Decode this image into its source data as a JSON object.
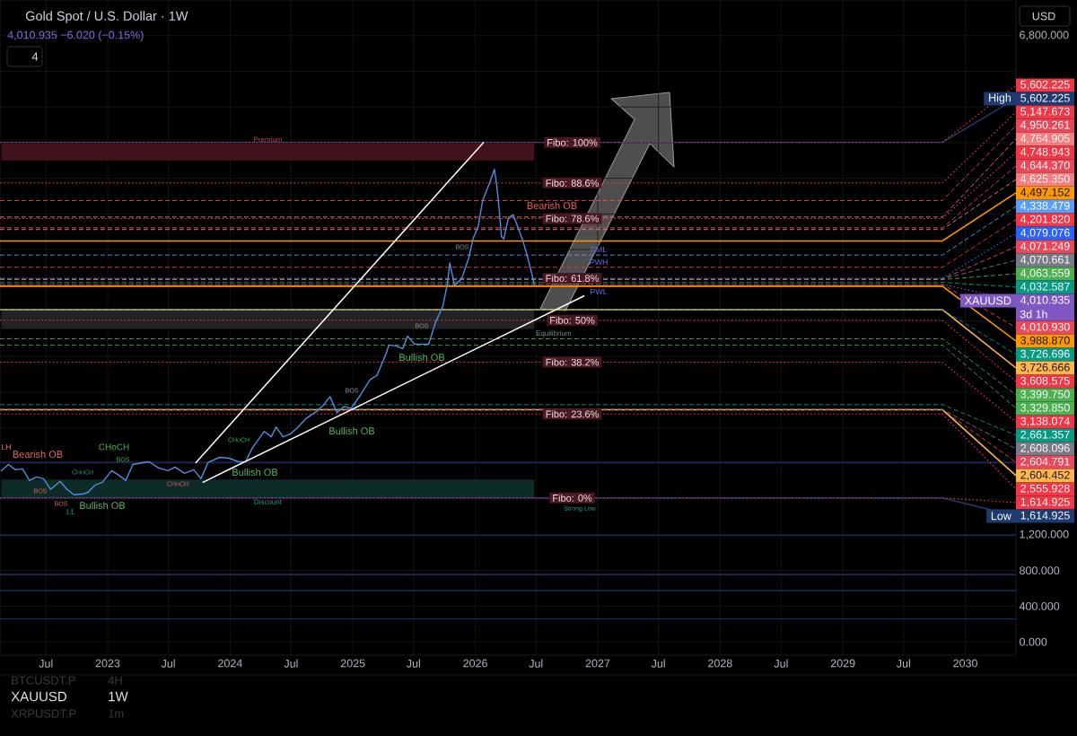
{
  "chart_data": {
    "type": "line",
    "title": "Gold Spot / U.S. Dollar · 1W",
    "subtitle": "4,010.935 −6.020 (−0.15%)",
    "xlim": [
      "2022-02-14",
      "2030-06-01"
    ],
    "xticks": [
      {
        "value": "2022-07-01",
        "label": "Jul"
      },
      {
        "value": "2023-01-01",
        "label": "2023"
      },
      {
        "value": "2023-07-01",
        "label": "Jul"
      },
      {
        "value": "2024-01-01",
        "label": "2024"
      },
      {
        "value": "2024-07-01",
        "label": "Jul"
      },
      {
        "value": "2025-01-01",
        "label": "2025"
      },
      {
        "value": "2025-07-01",
        "label": "Jul"
      },
      {
        "value": "2026-01-01",
        "label": "2026"
      },
      {
        "value": "2026-07-01",
        "label": "Jul"
      },
      {
        "value": "2027-01-01",
        "label": "2027"
      },
      {
        "value": "2027-07-01",
        "label": "Jul"
      },
      {
        "value": "2028-01-01",
        "label": "2028"
      },
      {
        "value": "2028-07-01",
        "label": "Jul"
      },
      {
        "value": "2029-01-01",
        "label": "2029"
      },
      {
        "value": "2029-07-01",
        "label": "Jul"
      },
      {
        "value": "2030-01-01",
        "label": "2030"
      }
    ],
    "ylim": [
      -150,
      7200
    ],
    "yticks": [
      {
        "value": 0,
        "label": "0.000"
      },
      {
        "value": 400,
        "label": "400.000"
      },
      {
        "value": 800,
        "label": "800.000"
      },
      {
        "value": 1200,
        "label": "1,200.000"
      },
      {
        "value": 1600,
        "label": null
      },
      {
        "value": 2000,
        "label": null
      },
      {
        "value": 2400,
        "label": null
      },
      {
        "value": 2800,
        "label": null
      },
      {
        "value": 3200,
        "label": null
      },
      {
        "value": 3600,
        "label": null
      },
      {
        "value": 4000,
        "label": null
      },
      {
        "value": 4400,
        "label": null
      },
      {
        "value": 4800,
        "label": null
      },
      {
        "value": 5200,
        "label": null
      },
      {
        "value": 5600,
        "label": null
      },
      {
        "value": 6000,
        "label": null
      },
      {
        "value": 6400,
        "label": null
      },
      {
        "value": 6800,
        "label": "6,800.000"
      }
    ],
    "grid": true,
    "series": [
      {
        "color": "#4f8fdc",
        "x": [
          "2022-02-18",
          "2022-03-11",
          "2022-04-01",
          "2022-04-22",
          "2022-05-13",
          "2022-06-03",
          "2022-06-24",
          "2022-07-15",
          "2022-08-12",
          "2022-09-02",
          "2022-09-23",
          "2022-10-21",
          "2022-11-04",
          "2022-11-25",
          "2022-12-16",
          "2023-01-13",
          "2023-02-03",
          "2023-02-24",
          "2023-03-17",
          "2023-04-14",
          "2023-05-05",
          "2023-06-02",
          "2023-06-30",
          "2023-07-21",
          "2023-08-18",
          "2023-09-15",
          "2023-10-06",
          "2023-10-27",
          "2023-12-01",
          "2023-12-29",
          "2024-01-26",
          "2024-02-16",
          "2024-03-08",
          "2024-04-12",
          "2024-05-03",
          "2024-05-17",
          "2024-06-07",
          "2024-06-28",
          "2024-07-19",
          "2024-08-16",
          "2024-09-13",
          "2024-10-04",
          "2024-10-25",
          "2024-11-15",
          "2024-12-06",
          "2024-12-27",
          "2025-01-24",
          "2025-02-21",
          "2025-03-14",
          "2025-04-11",
          "2025-04-18",
          "2025-05-09",
          "2025-05-30",
          "2025-06-13",
          "2025-07-04",
          "2025-07-25",
          "2025-08-15",
          "2025-09-05",
          "2025-09-26",
          "2025-10-10",
          "2025-10-17",
          "2025-10-31",
          "2025-11-21",
          "2025-12-12",
          "2025-12-26",
          "2026-01-09",
          "2026-01-23",
          "2026-02-13",
          "2026-02-27",
          "2026-03-06",
          "2026-03-13",
          "2026-03-20",
          "2026-03-27",
          "2026-04-10",
          "2026-04-24",
          "2026-05-08",
          "2026-05-22",
          "2026-06-05",
          "2026-06-19",
          "2026-06-26"
        ],
        "values": [
          1920,
          1990,
          1930,
          1940,
          1810,
          1850,
          1830,
          1710,
          1800,
          1710,
          1650,
          1660,
          1680,
          1760,
          1790,
          1920,
          1870,
          1810,
          1990,
          2010,
          2020,
          1950,
          1920,
          1960,
          1890,
          1930,
          1830,
          2010,
          2070,
          2060,
          2020,
          2020,
          2180,
          2360,
          2300,
          2410,
          2300,
          2330,
          2400,
          2510,
          2580,
          2650,
          2750,
          2570,
          2640,
          2620,
          2770,
          2940,
          2990,
          3240,
          3330,
          3320,
          3290,
          3430,
          3340,
          3340,
          3340,
          3590,
          3760,
          4020,
          4250,
          4000,
          4070,
          4300,
          4530,
          4650,
          4950,
          5150,
          5300,
          5120,
          4860,
          4550,
          4520,
          4760,
          4790,
          4650,
          4510,
          4330,
          4120,
          4010
        ]
      },
      {
        "type": "line",
        "color": "#ffffff",
        "x": [
          "2023-09-21",
          "2026-01-25"
        ],
        "values": [
          2010,
          5600
        ]
      },
      {
        "type": "line",
        "color": "#ffffff",
        "x": [
          "2023-10-12",
          "2026-11-21"
        ],
        "values": [
          1790,
          3880
        ]
      }
    ],
    "bands": [
      {
        "axis": "y",
        "from": 5400,
        "to": 5590,
        "color": "#43131b",
        "label": "Premium"
      },
      {
        "axis": "y",
        "from": 3510,
        "to": 3730,
        "color": "#232327",
        "label": "Equilibrium"
      },
      {
        "axis": "y",
        "from": 1620,
        "to": 1820,
        "color": "#0d2b27",
        "label": "Discount"
      }
    ],
    "ref_lines": [
      {
        "axis": "y",
        "value": 5602.225,
        "label": "5,602.225",
        "color": "#f23645",
        "line_style": "dotted"
      },
      {
        "axis": "y",
        "value": 5602.225,
        "label": "5,602.225",
        "color": "#1e3a6e",
        "line_style": "solid"
      },
      {
        "axis": "y",
        "value": 5147.673,
        "label": "5,147.673",
        "color": "#f23645",
        "line_style": "dotted"
      },
      {
        "axis": "y",
        "value": 4950.261,
        "label": "4,950.261",
        "color": "#e8485a",
        "line_style": "dashed"
      },
      {
        "axis": "y",
        "value": 4764.905,
        "label": "4,764.905",
        "color": "#f77c80",
        "line_style": "dashed"
      },
      {
        "axis": "y",
        "value": 4748.943,
        "label": "4,748.943",
        "color": "#f23645",
        "line_style": "dotted"
      },
      {
        "axis": "y",
        "value": 4644.37,
        "label": "4,644.370",
        "color": "#e8485a",
        "line_style": "dashed"
      },
      {
        "axis": "y",
        "value": 4625.35,
        "label": "4,625.350",
        "color": "#f77c80",
        "line_style": "dashed"
      },
      {
        "axis": "y",
        "value": 4497.152,
        "label": "4,497.152",
        "color": "#ff9800",
        "line_style": "solid"
      },
      {
        "axis": "y",
        "value": 4338.479,
        "label": "4,338.479",
        "color": "#5b9cf6",
        "line_style": "dashed"
      },
      {
        "axis": "y",
        "value": 4201.82,
        "label": "4,201.820",
        "color": "#f23645",
        "line_style": "dashed"
      },
      {
        "axis": "y",
        "value": 4079.076,
        "label": "4,079.076",
        "color": "#2962ff",
        "line_style": "dotted"
      },
      {
        "axis": "y",
        "value": 4071.249,
        "label": "4,071.249",
        "color": "#e8485a",
        "line_style": "dashed"
      },
      {
        "axis": "y",
        "value": 4070.661,
        "label": "4,070.661",
        "color": "#787b86",
        "line_style": "dashed"
      },
      {
        "axis": "y",
        "value": 4063.559,
        "label": "4,063.559",
        "color": "#4caf50",
        "line_style": "dashed"
      },
      {
        "axis": "y",
        "value": 4032.587,
        "label": "4,032.587",
        "color": "#089981",
        "line_style": "dashed"
      },
      {
        "axis": "y",
        "value": 4010.935,
        "label": "4,010.935",
        "color": "#7e57c2",
        "line_style": "dotted"
      },
      {
        "axis": "y",
        "value": 4010.93,
        "label": "4,010.930",
        "color": "#e8485a",
        "line_style": "dashed"
      },
      {
        "axis": "y",
        "value": 3988.87,
        "label": "3,988.870",
        "color": "#ff9800",
        "line_style": "solid"
      },
      {
        "axis": "y",
        "value": 3726.696,
        "label": "3,726.696",
        "color": "#089981",
        "line_style": "dashed"
      },
      {
        "axis": "y",
        "value": 3726.666,
        "label": "3,726.666",
        "color": "#ffb74d",
        "line_style": "solid"
      },
      {
        "axis": "y",
        "value": 3608.575,
        "label": "3,608.575",
        "color": "#f23645",
        "line_style": "dotted"
      },
      {
        "axis": "y",
        "value": 3399.75,
        "label": "3,399.750",
        "color": "#4caf50",
        "line_style": "dashed"
      },
      {
        "axis": "y",
        "value": 3329.85,
        "label": "3,329.850",
        "color": "#4caf50",
        "line_style": "dashed"
      },
      {
        "axis": "y",
        "value": 3138.074,
        "label": "3,138.074",
        "color": "#f23645",
        "line_style": "dotted"
      },
      {
        "axis": "y",
        "value": 2661.357,
        "label": "2,661.357",
        "color": "#089981",
        "line_style": "dashed"
      },
      {
        "axis": "y",
        "value": 2608.096,
        "label": "2,608.096",
        "color": "#787b86",
        "line_style": "dashed"
      },
      {
        "axis": "y",
        "value": 2604.791,
        "label": "2,604.791",
        "color": "#e8485a",
        "line_style": "dashed"
      },
      {
        "axis": "y",
        "value": 2604.452,
        "label": "2,604.452",
        "color": "#ffb74d",
        "line_style": "solid"
      },
      {
        "axis": "y",
        "value": 2555.928,
        "label": "2,555.928",
        "color": "#f23645",
        "line_style": "dotted"
      },
      {
        "axis": "y",
        "value": 1614.925,
        "label": "1,614.925",
        "color": "#f23645",
        "line_style": "dotted"
      },
      {
        "axis": "y",
        "value": 1614.925,
        "label": "1,614.925",
        "color": "#1e3a6e",
        "line_style": "solid"
      },
      {
        "axis": "y",
        "value": 2015,
        "color": "#1c2a5c",
        "line_style": "solid"
      },
      {
        "axis": "y",
        "value": 1195,
        "color": "#1c2a5c",
        "line_style": "solid"
      },
      {
        "axis": "y",
        "value": 755,
        "color": "#1c2a5c",
        "line_style": "solid"
      },
      {
        "axis": "y",
        "value": 575,
        "color": "#1c2a5c",
        "line_style": "solid"
      },
      {
        "axis": "y",
        "value": 255,
        "color": "#1c2a5c",
        "line_style": "solid"
      }
    ],
    "annotations": [
      {
        "text": "Fibo: 100%",
        "x": "2026-10-17",
        "y": 5602.225
      },
      {
        "text": "Fibo: 88.6%",
        "x": "2026-10-17",
        "y": 5147.673
      },
      {
        "text": "Fibo: 78.6%",
        "x": "2026-10-17",
        "y": 4748.943
      },
      {
        "text": "Fibo: 61.8%",
        "x": "2026-10-17",
        "y": 4079.076
      },
      {
        "text": "Fibo: 50%",
        "x": "2026-10-17",
        "y": 3608.575
      },
      {
        "text": "Fibo: 38.2%",
        "x": "2026-10-17",
        "y": 3138.074
      },
      {
        "text": "Fibo: 23.6%",
        "x": "2026-10-17",
        "y": 2555.928
      },
      {
        "text": "Fibo: 0%",
        "x": "2026-10-17",
        "y": 1614.925
      },
      "Bearish OB",
      "Bearish OB",
      "Bullish OB",
      "Bullish OB",
      "Bullish OB",
      "Bullish OB",
      "CHoCH",
      "CHoCH",
      "CHoCH",
      "CHoCH",
      "BOS",
      "BOS",
      "BOS",
      "BOS",
      "BOS",
      "BOS",
      "LH",
      "LL",
      "PML",
      "PWH",
      "PWL",
      "Strong Low",
      "High",
      "XAUUSD",
      "3d 1h",
      "Low",
      "4",
      "USD",
      "XAUUSD",
      "1W",
      "BTCUSDT.P",
      "4H",
      "XRPUSDT.P",
      "1m"
    ]
  }
}
